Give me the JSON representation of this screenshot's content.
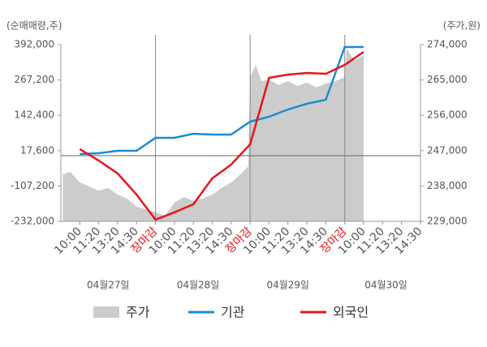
{
  "chart_data": {
    "type": "line",
    "ylabel": "(순매매량,주)",
    "y2label": "(주가,원)",
    "xlim": [
      -1,
      18
    ],
    "xticks": [
      {
        "value": 0,
        "label": "10:00"
      },
      {
        "value": 1,
        "label": "11:20"
      },
      {
        "value": 2,
        "label": "13:20"
      },
      {
        "value": 3,
        "label": "14:30"
      },
      {
        "value": 4,
        "label": "장마감",
        "color": "#e8141b"
      },
      {
        "value": 5,
        "label": "10:00"
      },
      {
        "value": 6,
        "label": "11:20"
      },
      {
        "value": 7,
        "label": "13:20"
      },
      {
        "value": 8,
        "label": "14:30"
      },
      {
        "value": 9,
        "label": "장마감",
        "color": "#e8141b"
      },
      {
        "value": 10,
        "label": "10:00"
      },
      {
        "value": 11,
        "label": "11:20"
      },
      {
        "value": 12,
        "label": "13:20"
      },
      {
        "value": 13,
        "label": "14:30"
      },
      {
        "value": 14,
        "label": "장마감",
        "color": "#e8141b"
      },
      {
        "value": 15,
        "label": "10:00"
      },
      {
        "value": 16,
        "label": "11:20"
      },
      {
        "value": 17,
        "label": "13:20"
      },
      {
        "value": 18,
        "label": "14:30"
      }
    ],
    "dates": [
      "04월27일",
      "04월28일",
      "04월29일",
      "04월30일"
    ],
    "ylim": [
      -232000,
      392000
    ],
    "yticks": [
      {
        "value": 392000,
        "label": "392,000"
      },
      {
        "value": 267200,
        "label": "267,200"
      },
      {
        "value": 142400,
        "label": "142,400"
      },
      {
        "value": 17600,
        "label": "17,600"
      },
      {
        "value": -107200,
        "label": "-107,200"
      },
      {
        "value": -232000,
        "label": "-232,000"
      }
    ],
    "y2lim": [
      229000,
      274000
    ],
    "y2ticks": [
      {
        "value": 274000,
        "label": "274,000"
      },
      {
        "value": 265000,
        "label": "265,000"
      },
      {
        "value": 256000,
        "label": "256,000"
      },
      {
        "value": 247000,
        "label": "247,000"
      },
      {
        "value": 238000,
        "label": "238,000"
      },
      {
        "value": 229000,
        "label": "229,000"
      }
    ],
    "series": [
      {
        "name": "주가",
        "kind": "area",
        "axis": "y2",
        "color": "#cccccc",
        "x": [
          -0.9,
          -0.5,
          0,
          0.5,
          1,
          1.5,
          2,
          2.5,
          3,
          3.5,
          4,
          4.5,
          5,
          5.5,
          6,
          6.5,
          7,
          7.5,
          8,
          8.5,
          8.9,
          9,
          9.3,
          9.6,
          10,
          10.5,
          11,
          11.5,
          12,
          12.5,
          13,
          13.5,
          14,
          14.1,
          14.5,
          15
        ],
        "values": [
          241000,
          241600,
          238900,
          237900,
          236800,
          237500,
          235800,
          234800,
          232700,
          232100,
          231300,
          230400,
          233800,
          235200,
          234200,
          234800,
          235800,
          237500,
          238900,
          241000,
          243000,
          265700,
          268800,
          264700,
          265100,
          263700,
          264700,
          263500,
          264300,
          263100,
          264100,
          264700,
          265700,
          273000,
          269900,
          271300
        ]
      },
      {
        "name": "기관",
        "kind": "line",
        "color": "#1a8bd0",
        "x": [
          0,
          1,
          2,
          3,
          4,
          5,
          6,
          7,
          8,
          9,
          10,
          11,
          12,
          13,
          14,
          15
        ],
        "values": [
          5600,
          8500,
          17100,
          17100,
          62900,
          62900,
          77200,
          74300,
          74300,
          120100,
          137300,
          163000,
          183100,
          197400,
          383400,
          383400
        ]
      },
      {
        "name": "외국인",
        "kind": "line",
        "color": "#e8141b",
        "x": [
          0,
          1,
          2,
          3,
          4,
          5,
          6,
          7,
          8,
          9,
          10,
          11,
          12,
          13,
          14,
          15
        ],
        "values": [
          22800,
          -17300,
          -63100,
          -137500,
          -226200,
          -200400,
          -171800,
          -80200,
          -31600,
          40000,
          274700,
          286100,
          291800,
          289000,
          320500,
          366200
        ]
      }
    ]
  }
}
